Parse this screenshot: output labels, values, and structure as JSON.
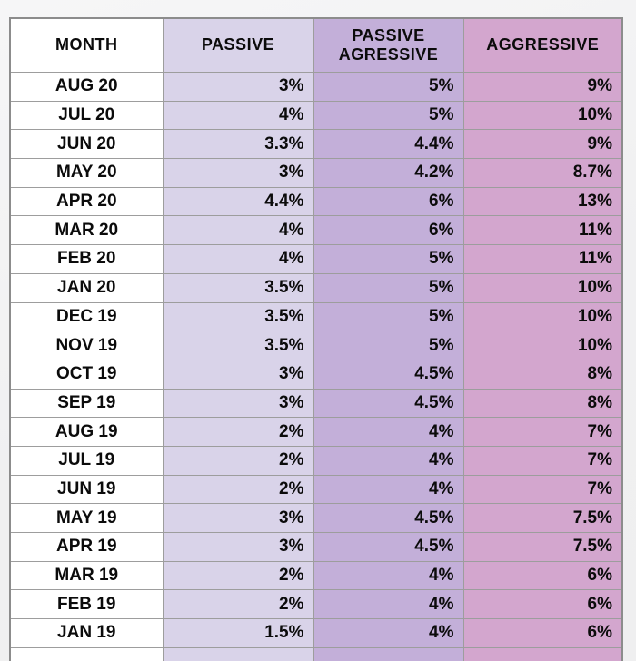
{
  "colors": {
    "page_background": "#f1f1f2",
    "outer_border": "#8c8c8c",
    "grid_line": "#9d9d9d",
    "text": "#0b0b0b",
    "month_column": "#ffffff",
    "passive_column": "#d9d3e9",
    "passive_aggressive_column": "#c3afd9",
    "aggressive_column": "#d3a6ce"
  },
  "chart_data": {
    "type": "table",
    "columns": [
      {
        "key": "month",
        "label": "MONTH",
        "bg": "#ffffff",
        "align": "center"
      },
      {
        "key": "passive",
        "label": "PASSIVE",
        "bg": "#d9d3e9",
        "align": "right"
      },
      {
        "key": "passive-aggressive",
        "label": "PASSIVE AGRESSIVE",
        "bg": "#c3afd9",
        "align": "right"
      },
      {
        "key": "aggressive",
        "label": "AGGRESSIVE",
        "bg": "#d3a6ce",
        "align": "right"
      }
    ],
    "rows": [
      [
        "AUG 20",
        "3%",
        "5%",
        "9%"
      ],
      [
        "JUL 20",
        "4%",
        "5%",
        "10%"
      ],
      [
        "JUN 20",
        "3.3%",
        "4.4%",
        "9%"
      ],
      [
        "MAY 20",
        "3%",
        "4.2%",
        "8.7%"
      ],
      [
        "APR 20",
        "4.4%",
        "6%",
        "13%"
      ],
      [
        "MAR 20",
        "4%",
        "6%",
        "11%"
      ],
      [
        "FEB 20",
        "4%",
        "5%",
        "11%"
      ],
      [
        "JAN 20",
        "3.5%",
        "5%",
        "10%"
      ],
      [
        "DEC 19",
        "3.5%",
        "5%",
        "10%"
      ],
      [
        "NOV 19",
        "3.5%",
        "5%",
        "10%"
      ],
      [
        "OCT 19",
        "3%",
        "4.5%",
        "8%"
      ],
      [
        "SEP 19",
        "3%",
        "4.5%",
        "8%"
      ],
      [
        "AUG 19",
        "2%",
        "4%",
        "7%"
      ],
      [
        "JUL 19",
        "2%",
        "4%",
        "7%"
      ],
      [
        "JUN 19",
        "2%",
        "4%",
        "7%"
      ],
      [
        "MAY 19",
        "3%",
        "4.5%",
        "7.5%"
      ],
      [
        "APR 19",
        "3%",
        "4.5%",
        "7.5%"
      ],
      [
        "MAR 19",
        "2%",
        "4%",
        "6%"
      ],
      [
        "FEB 19",
        "2%",
        "4%",
        "6%"
      ],
      [
        "JAN 19",
        "1.5%",
        "4%",
        "6%"
      ]
    ],
    "partial_row_visible": true
  }
}
